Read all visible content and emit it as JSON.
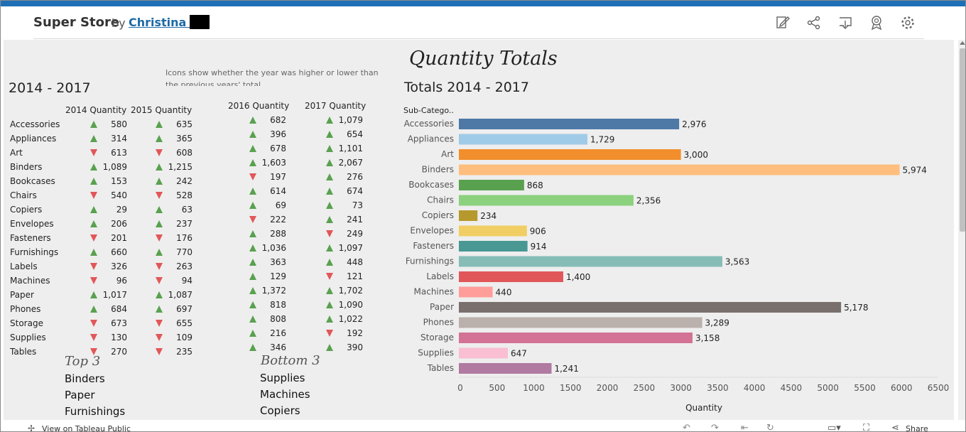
{
  "header": {
    "title": "Super Store",
    "by": "by",
    "author": "Christina S",
    "icons": [
      "edit-icon",
      "share-icon",
      "download-icon",
      "badge-icon",
      "gear-icon"
    ]
  },
  "dashboard": {
    "title": "Quantity Totals",
    "year_range": "2014 - 2017",
    "note": "Icons show whether the year was higher or lower than the previous years' total",
    "chart_title": "Totals 2014 - 2017"
  },
  "table": {
    "columns": [
      "2014 Quantity",
      "2015 Quantity",
      "2016 Quantity",
      "2017 Quantity"
    ],
    "rows": [
      {
        "label": "Accessories",
        "q2014": {
          "v": "580",
          "dir": "up"
        },
        "q2015": {
          "v": "635",
          "dir": "up"
        },
        "q2016": {
          "v": "682",
          "dir": "up"
        },
        "q2017": {
          "v": "1,079",
          "dir": "up"
        }
      },
      {
        "label": "Appliances",
        "q2014": {
          "v": "314",
          "dir": "up"
        },
        "q2015": {
          "v": "365",
          "dir": "up"
        },
        "q2016": {
          "v": "396",
          "dir": "up"
        },
        "q2017": {
          "v": "654",
          "dir": "up"
        }
      },
      {
        "label": "Art",
        "q2014": {
          "v": "613",
          "dir": "down"
        },
        "q2015": {
          "v": "608",
          "dir": "down"
        },
        "q2016": {
          "v": "678",
          "dir": "up"
        },
        "q2017": {
          "v": "1,101",
          "dir": "up"
        }
      },
      {
        "label": "Binders",
        "q2014": {
          "v": "1,089",
          "dir": "up"
        },
        "q2015": {
          "v": "1,215",
          "dir": "up"
        },
        "q2016": {
          "v": "1,603",
          "dir": "up"
        },
        "q2017": {
          "v": "2,067",
          "dir": "up"
        }
      },
      {
        "label": "Bookcases",
        "q2014": {
          "v": "153",
          "dir": "up"
        },
        "q2015": {
          "v": "242",
          "dir": "up"
        },
        "q2016": {
          "v": "197",
          "dir": "down"
        },
        "q2017": {
          "v": "276",
          "dir": "up"
        }
      },
      {
        "label": "Chairs",
        "q2014": {
          "v": "540",
          "dir": "down"
        },
        "q2015": {
          "v": "528",
          "dir": "down"
        },
        "q2016": {
          "v": "614",
          "dir": "up"
        },
        "q2017": {
          "v": "674",
          "dir": "up"
        }
      },
      {
        "label": "Copiers",
        "q2014": {
          "v": "29",
          "dir": "up"
        },
        "q2015": {
          "v": "63",
          "dir": "up"
        },
        "q2016": {
          "v": "69",
          "dir": "up"
        },
        "q2017": {
          "v": "73",
          "dir": "up"
        }
      },
      {
        "label": "Envelopes",
        "q2014": {
          "v": "206",
          "dir": "up"
        },
        "q2015": {
          "v": "237",
          "dir": "up"
        },
        "q2016": {
          "v": "222",
          "dir": "down"
        },
        "q2017": {
          "v": "241",
          "dir": "up"
        }
      },
      {
        "label": "Fasteners",
        "q2014": {
          "v": "201",
          "dir": "down"
        },
        "q2015": {
          "v": "176",
          "dir": "down"
        },
        "q2016": {
          "v": "288",
          "dir": "up"
        },
        "q2017": {
          "v": "249",
          "dir": "down"
        }
      },
      {
        "label": "Furnishings",
        "q2014": {
          "v": "660",
          "dir": "up"
        },
        "q2015": {
          "v": "770",
          "dir": "up"
        },
        "q2016": {
          "v": "1,036",
          "dir": "up"
        },
        "q2017": {
          "v": "1,097",
          "dir": "up"
        }
      },
      {
        "label": "Labels",
        "q2014": {
          "v": "326",
          "dir": "down"
        },
        "q2015": {
          "v": "263",
          "dir": "down"
        },
        "q2016": {
          "v": "363",
          "dir": "up"
        },
        "q2017": {
          "v": "448",
          "dir": "up"
        }
      },
      {
        "label": "Machines",
        "q2014": {
          "v": "96",
          "dir": "down"
        },
        "q2015": {
          "v": "94",
          "dir": "down"
        },
        "q2016": {
          "v": "129",
          "dir": "up"
        },
        "q2017": {
          "v": "121",
          "dir": "down"
        }
      },
      {
        "label": "Paper",
        "q2014": {
          "v": "1,017",
          "dir": "up"
        },
        "q2015": {
          "v": "1,087",
          "dir": "up"
        },
        "q2016": {
          "v": "1,372",
          "dir": "up"
        },
        "q2017": {
          "v": "1,702",
          "dir": "up"
        }
      },
      {
        "label": "Phones",
        "q2014": {
          "v": "684",
          "dir": "up"
        },
        "q2015": {
          "v": "697",
          "dir": "up"
        },
        "q2016": {
          "v": "818",
          "dir": "up"
        },
        "q2017": {
          "v": "1,090",
          "dir": "up"
        }
      },
      {
        "label": "Storage",
        "q2014": {
          "v": "673",
          "dir": "down"
        },
        "q2015": {
          "v": "655",
          "dir": "down"
        },
        "q2016": {
          "v": "808",
          "dir": "up"
        },
        "q2017": {
          "v": "1,022",
          "dir": "up"
        }
      },
      {
        "label": "Supplies",
        "q2014": {
          "v": "130",
          "dir": "down"
        },
        "q2015": {
          "v": "109",
          "dir": "down"
        },
        "q2016": {
          "v": "216",
          "dir": "up"
        },
        "q2017": {
          "v": "192",
          "dir": "down"
        }
      },
      {
        "label": "Tables",
        "q2014": {
          "v": "270",
          "dir": "down"
        },
        "q2015": {
          "v": "235",
          "dir": "down"
        },
        "q2016": {
          "v": "346",
          "dir": "up"
        },
        "q2017": {
          "v": "390",
          "dir": "up"
        }
      }
    ]
  },
  "top3": {
    "title": "Top 3",
    "items": [
      "Binders",
      "Paper",
      "Furnishings"
    ]
  },
  "bottom3": {
    "title": "Bottom 3",
    "items": [
      "Supplies",
      "Machines",
      "Copiers"
    ]
  },
  "chart_data": {
    "type": "bar",
    "orientation": "horizontal",
    "title": "Totals 2014 - 2017",
    "category_header": "Sub-Catego..",
    "xlabel": "Quantity",
    "xlim": [
      0,
      6500
    ],
    "xticks": [
      0,
      500,
      1000,
      1500,
      2000,
      2500,
      3000,
      3500,
      4000,
      4500,
      5000,
      5500,
      6000,
      6500
    ],
    "categories": [
      "Accessories",
      "Appliances",
      "Art",
      "Binders",
      "Bookcases",
      "Chairs",
      "Copiers",
      "Envelopes",
      "Fasteners",
      "Furnishings",
      "Labels",
      "Machines",
      "Paper",
      "Phones",
      "Storage",
      "Supplies",
      "Tables"
    ],
    "values": [
      2976,
      1729,
      3000,
      5974,
      868,
      2356,
      234,
      906,
      914,
      3563,
      1400,
      440,
      5178,
      3289,
      3158,
      647,
      1241
    ],
    "value_labels": [
      "2,976",
      "1,729",
      "3,000",
      "5,974",
      "868",
      "2,356",
      "234",
      "906",
      "914",
      "3,563",
      "1,400",
      "440",
      "5,178",
      "3,289",
      "3,158",
      "647",
      "1,241"
    ],
    "colors": [
      "#4e79a7",
      "#a0cbe8",
      "#f28e2b",
      "#ffbe7d",
      "#59a14f",
      "#8cd17d",
      "#b6992d",
      "#f1ce63",
      "#499894",
      "#86bcb6",
      "#e15759",
      "#ff9d9a",
      "#79706e",
      "#bab0ac",
      "#d37295",
      "#fabfd2",
      "#b07aa1"
    ],
    "grid": false
  },
  "footer": {
    "view_link": "View on Tableau Public",
    "share": "Share"
  }
}
